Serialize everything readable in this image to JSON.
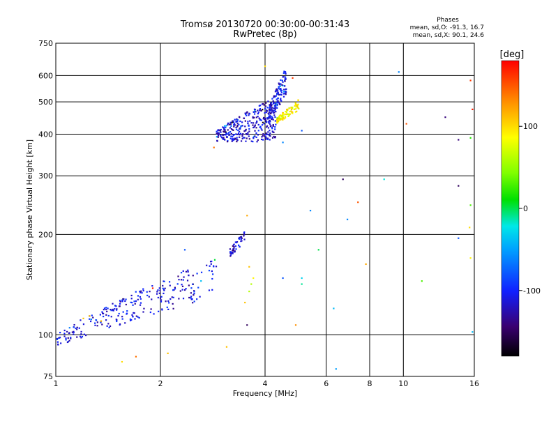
{
  "chart_data": {
    "type": "scatter",
    "title": "Tromsø 20130720 00:30:00-00:31:43",
    "subtitle": "RwPretec (8p)",
    "xlabel": "Frequency [MHz]",
    "ylabel": "Stationary phase Virtual Height [km]",
    "x_scale": "log",
    "y_scale": "log",
    "xlim": [
      1,
      16
    ],
    "ylim": [
      75,
      750
    ],
    "grid": true,
    "x_ticks": [
      1,
      2,
      4,
      6,
      8,
      10,
      16
    ],
    "x_tick_labels": [
      "1",
      "2",
      "4",
      "6",
      "8",
      "10",
      "16"
    ],
    "y_ticks": [
      75,
      100,
      200,
      300,
      400,
      500,
      600,
      750
    ],
    "y_tick_labels": [
      "75",
      "100",
      "200",
      "300",
      "400",
      "500",
      "600",
      "750"
    ],
    "stats": {
      "header": "Phases",
      "line_o": "mean, sd,O: -91.3, 16.7",
      "line_x": "mean, sd,X: 90.1, 24.6"
    },
    "colorbar": {
      "label": "[deg]",
      "range": [
        -180,
        180
      ],
      "ticks": [
        100,
        0,
        -100
      ],
      "tick_labels": [
        "100",
        "0",
        "-100"
      ]
    },
    "clusters": [
      {
        "name": "low-layer trace",
        "x_range": [
          1.0,
          2.9
        ],
        "y_from": [
          92,
          100
        ],
        "y_to": [
          130,
          170
        ],
        "phase": -110,
        "count": 260
      },
      {
        "name": "spread segment",
        "x_range": [
          3.15,
          3.5
        ],
        "y_from": [
          170,
          180
        ],
        "y_to": [
          190,
          205
        ],
        "phase": -115,
        "count": 45
      },
      {
        "name": "F-layer trace",
        "x_range": [
          2.9,
          4.3
        ],
        "y_from": [
          380,
          410
        ],
        "y_to": [
          380,
          520
        ],
        "phase": -115,
        "count": 320
      },
      {
        "name": "F-layer cusp",
        "x_range": [
          4.1,
          4.6
        ],
        "y_from": [
          420,
          480
        ],
        "y_to": [
          530,
          640
        ],
        "phase": -110,
        "count": 130
      },
      {
        "name": "X-mode trace",
        "x_range": [
          4.3,
          5.0
        ],
        "y_from": [
          430,
          445
        ],
        "y_to": [
          470,
          510
        ],
        "phase": 90,
        "count": 90
      }
    ],
    "sparse_points": [
      {
        "x": 6.7,
        "y": 293,
        "phase": -150
      },
      {
        "x": 8.8,
        "y": 293,
        "phase": -20
      },
      {
        "x": 7.4,
        "y": 250,
        "phase": 150
      },
      {
        "x": 5.4,
        "y": 236,
        "phase": -60
      },
      {
        "x": 6.9,
        "y": 222,
        "phase": -60
      },
      {
        "x": 5.7,
        "y": 180,
        "phase": 0
      },
      {
        "x": 7.8,
        "y": 163,
        "phase": 120
      },
      {
        "x": 5.1,
        "y": 148,
        "phase": -30
      },
      {
        "x": 4.5,
        "y": 148,
        "phase": -80
      },
      {
        "x": 5.1,
        "y": 142,
        "phase": -10
      },
      {
        "x": 11.3,
        "y": 145,
        "phase": 30
      },
      {
        "x": 6.3,
        "y": 120,
        "phase": -40
      },
      {
        "x": 4.9,
        "y": 107,
        "phase": 130
      },
      {
        "x": 6.4,
        "y": 79,
        "phase": -50
      },
      {
        "x": 10.2,
        "y": 430,
        "phase": 150
      },
      {
        "x": 9.7,
        "y": 615,
        "phase": -60
      },
      {
        "x": 13.2,
        "y": 450,
        "phase": -140
      },
      {
        "x": 14.4,
        "y": 385,
        "phase": -140
      },
      {
        "x": 14.4,
        "y": 280,
        "phase": -150
      },
      {
        "x": 14.4,
        "y": 195,
        "phase": -80
      },
      {
        "x": 15.6,
        "y": 390,
        "phase": 20
      },
      {
        "x": 15.6,
        "y": 245,
        "phase": 30
      },
      {
        "x": 15.5,
        "y": 210,
        "phase": 100
      },
      {
        "x": 15.6,
        "y": 170,
        "phase": 90
      },
      {
        "x": 15.8,
        "y": 102,
        "phase": -40
      },
      {
        "x": 15.8,
        "y": 475,
        "phase": 170
      },
      {
        "x": 15.6,
        "y": 580,
        "phase": 160
      },
      {
        "x": 1.2,
        "y": 112,
        "phase": 110
      },
      {
        "x": 1.25,
        "y": 114,
        "phase": 110
      },
      {
        "x": 1.35,
        "y": 110,
        "phase": 110
      },
      {
        "x": 1.55,
        "y": 83,
        "phase": 100
      },
      {
        "x": 1.7,
        "y": 86,
        "phase": 140
      },
      {
        "x": 2.1,
        "y": 88,
        "phase": 110
      },
      {
        "x": 3.1,
        "y": 92,
        "phase": 110
      },
      {
        "x": 1.9,
        "y": 138,
        "phase": 170
      },
      {
        "x": 2.35,
        "y": 180,
        "phase": -80
      },
      {
        "x": 3.55,
        "y": 228,
        "phase": 120
      },
      {
        "x": 3.55,
        "y": 107,
        "phase": -150
      },
      {
        "x": 3.5,
        "y": 125,
        "phase": 110
      },
      {
        "x": 3.6,
        "y": 135,
        "phase": 60
      },
      {
        "x": 3.65,
        "y": 142,
        "phase": 60
      },
      {
        "x": 3.7,
        "y": 148,
        "phase": 90
      },
      {
        "x": 3.6,
        "y": 160,
        "phase": 110
      },
      {
        "x": 2.85,
        "y": 365,
        "phase": 140
      },
      {
        "x": 4.5,
        "y": 378,
        "phase": -60
      },
      {
        "x": 5.1,
        "y": 410,
        "phase": -80
      },
      {
        "x": 4.8,
        "y": 590,
        "phase": 160
      },
      {
        "x": 4.0,
        "y": 640,
        "phase": 100
      }
    ]
  }
}
